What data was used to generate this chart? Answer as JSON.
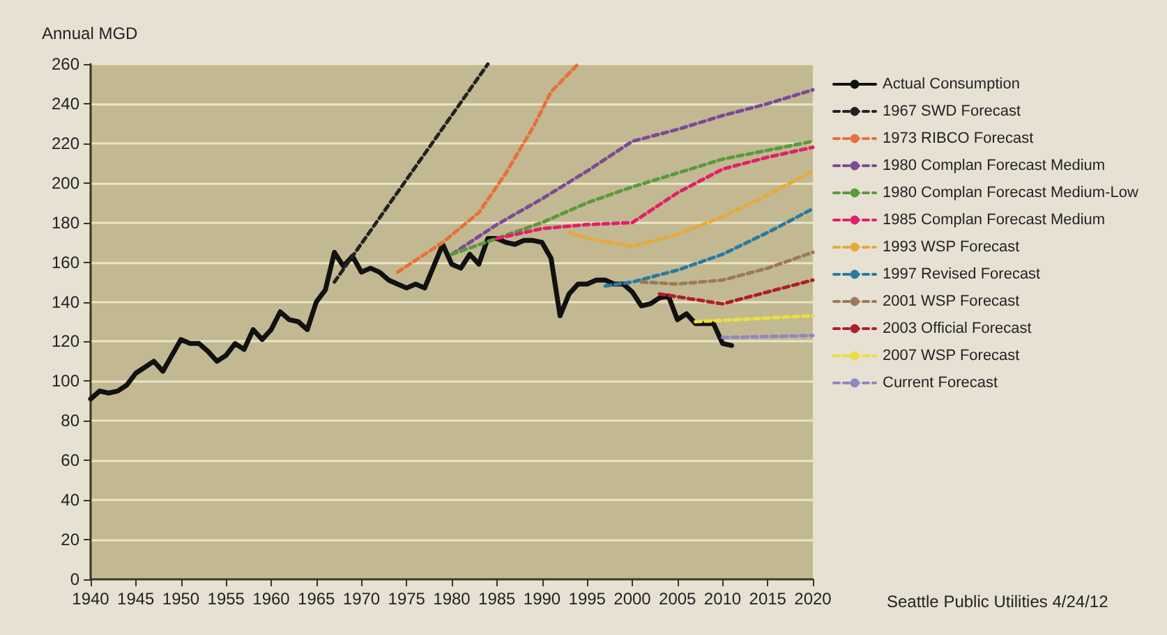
{
  "chart_data": {
    "type": "line",
    "ylabel": "Annual MGD",
    "annotations": [
      "Seattle Public Utilities 4/24/12"
    ],
    "xlim": [
      1940,
      2020
    ],
    "xticks": [
      1940,
      1945,
      1950,
      1955,
      1960,
      1965,
      1970,
      1975,
      1980,
      1985,
      1990,
      1995,
      2000,
      2005,
      2010,
      2015,
      2020
    ],
    "ylim": [
      0,
      260
    ],
    "yticks": [
      0,
      20,
      40,
      60,
      80,
      100,
      120,
      140,
      160,
      180,
      200,
      220,
      240,
      260
    ],
    "grid": "y",
    "legend": "right",
    "marker": "none",
    "series": [
      {
        "name": "Actual Consumption",
        "color": "#111111",
        "line_style": "solid",
        "x": [
          1940,
          1941,
          1942,
          1943,
          1944,
          1945,
          1946,
          1947,
          1948,
          1949,
          1950,
          1951,
          1952,
          1953,
          1954,
          1955,
          1956,
          1957,
          1958,
          1959,
          1960,
          1961,
          1962,
          1963,
          1964,
          1965,
          1966,
          1967,
          1968,
          1969,
          1970,
          1971,
          1972,
          1973,
          1974,
          1975,
          1976,
          1977,
          1978,
          1979,
          1980,
          1981,
          1982,
          1983,
          1984,
          1985,
          1986,
          1987,
          1988,
          1989,
          1990,
          1991,
          1992,
          1993,
          1994,
          1995,
          1996,
          1997,
          1998,
          1999,
          2000,
          2001,
          2002,
          2003,
          2004,
          2005,
          2006,
          2007,
          2008,
          2009,
          2010,
          2011
        ],
        "values": [
          91,
          95,
          94,
          95,
          98,
          104,
          107,
          110,
          105,
          113,
          121,
          119,
          119,
          115,
          110,
          113,
          119,
          116,
          126,
          121,
          126,
          135,
          131,
          130,
          126,
          140,
          146,
          165,
          158,
          163,
          155,
          157,
          155,
          151,
          149,
          147,
          149,
          147,
          158,
          169,
          159,
          157,
          164,
          159,
          172,
          172,
          170,
          169,
          171,
          171,
          170,
          162,
          133,
          144,
          149,
          149,
          151,
          151,
          149,
          149,
          145,
          138,
          139,
          142,
          143,
          131,
          134,
          129,
          129,
          129,
          119,
          118
        ]
      },
      {
        "name": "1967 SWD Forecast",
        "color": "#222222",
        "line_style": "dashed",
        "x": [
          1967,
          1984
        ],
        "values": [
          150,
          260
        ]
      },
      {
        "name": "1973 RIBCO Forecast",
        "color": "#e8703a",
        "line_style": "dashed",
        "x": [
          1974,
          1979,
          1983,
          1986,
          1989,
          1991,
          1994
        ],
        "values": [
          155,
          170,
          185,
          205,
          228,
          246,
          260
        ]
      },
      {
        "name": "1980 Complan Forecast Medium",
        "color": "#7b4b94",
        "line_style": "dashed",
        "x": [
          1980,
          1985,
          1990,
          1995,
          2000,
          2005,
          2010,
          2015,
          2020
        ],
        "values": [
          164,
          179,
          192,
          206,
          221,
          227,
          234,
          240,
          247
        ]
      },
      {
        "name": "1980 Complan Forecast Medium-Low",
        "color": "#5a9a3c",
        "line_style": "dashed",
        "x": [
          1980,
          1985,
          1990,
          1995,
          2000,
          2005,
          2010,
          2020
        ],
        "values": [
          164,
          172,
          180,
          190,
          198,
          205,
          212,
          221
        ]
      },
      {
        "name": "1985 Complan Forecast Medium",
        "color": "#e0206a",
        "line_style": "dashed",
        "x": [
          1985,
          1990,
          1995,
          2000,
          2005,
          2010,
          2015,
          2020
        ],
        "values": [
          172,
          177,
          179,
          180,
          195,
          207,
          213,
          218
        ]
      },
      {
        "name": "1993 WSP Forecast",
        "color": "#e8a83a",
        "line_style": "dashed",
        "x": [
          1993,
          1995,
          2000,
          2005,
          2010,
          2015,
          2020
        ],
        "values": [
          175,
          172,
          168,
          174,
          183,
          194,
          206
        ]
      },
      {
        "name": "1997 Revised Forecast",
        "color": "#2a7aa0",
        "line_style": "dashed",
        "x": [
          1997,
          2000,
          2005,
          2010,
          2015,
          2020
        ],
        "values": [
          148,
          150,
          156,
          164,
          175,
          187
        ]
      },
      {
        "name": "2001 WSP Forecast",
        "color": "#9a7a5a",
        "line_style": "dashed",
        "x": [
          2001,
          2005,
          2010,
          2015,
          2020
        ],
        "values": [
          150,
          149,
          151,
          157,
          165
        ]
      },
      {
        "name": "2003 Official Forecast",
        "color": "#b01e2a",
        "line_style": "dashed",
        "x": [
          2003,
          2010,
          2020
        ],
        "values": [
          144,
          139,
          151
        ]
      },
      {
        "name": "2007 WSP Forecast",
        "color": "#e8e040",
        "line_style": "dashed",
        "x": [
          2007,
          2020
        ],
        "values": [
          130,
          133
        ]
      },
      {
        "name": "Current Forecast",
        "color": "#9088c0",
        "line_style": "dashed",
        "x": [
          2010,
          2020
        ],
        "values": [
          122,
          123
        ]
      }
    ]
  }
}
